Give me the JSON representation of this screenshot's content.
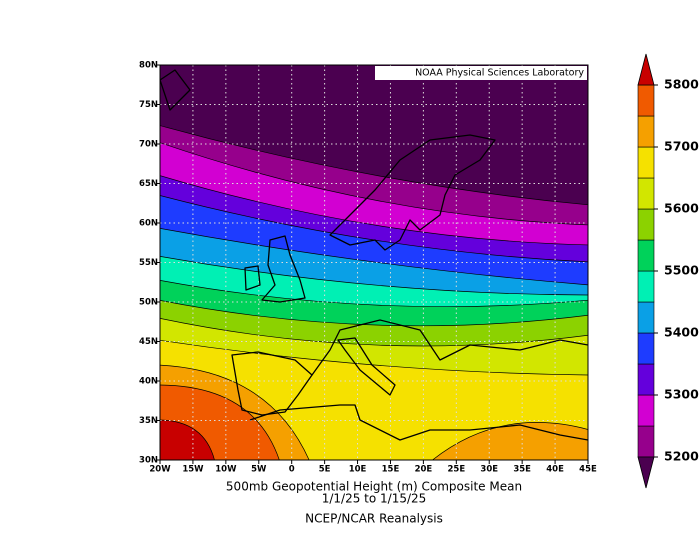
{
  "map": {
    "title": "500mb Geopotential Height (m) Composite Mean",
    "date_range": "1/1/25  to 1/15/25",
    "source": "NCEP/NCAR Reanalysis",
    "credit": "NOAA Physical Sciences Laboratory",
    "lonlim": [
      -20,
      45
    ],
    "latlim": [
      30,
      80
    ],
    "lon_ticks": [
      {
        "value": -20,
        "label": "20W"
      },
      {
        "value": -15,
        "label": "15W"
      },
      {
        "value": -10,
        "label": "10W"
      },
      {
        "value": -5,
        "label": "5W"
      },
      0,
      {
        "value": 5,
        "label": "5E"
      },
      {
        "value": 10,
        "label": "10E"
      },
      {
        "value": 15,
        "label": "15E"
      },
      {
        "value": 20,
        "label": "20E"
      },
      {
        "value": 25,
        "label": "25E"
      },
      {
        "value": 30,
        "label": "30E"
      },
      {
        "value": 35,
        "label": "35E"
      },
      {
        "value": 40,
        "label": "40E"
      },
      {
        "value": 45,
        "label": "45E"
      }
    ],
    "lat_ticks": [
      {
        "value": 30,
        "label": "30N"
      },
      {
        "value": 35,
        "label": "35N"
      },
      {
        "value": 40,
        "label": "40N"
      },
      {
        "value": 45,
        "label": "45N"
      },
      {
        "value": 50,
        "label": "50N"
      },
      {
        "value": 55,
        "label": "55N"
      },
      {
        "value": 60,
        "label": "60N"
      },
      {
        "value": 65,
        "label": "65N"
      },
      {
        "value": 70,
        "label": "70N"
      },
      {
        "value": 75,
        "label": "75N"
      },
      {
        "value": 80,
        "label": "80N"
      }
    ],
    "colorbar": {
      "lim": [
        5200,
        5800
      ],
      "ticks": [
        5200,
        5300,
        5400,
        5500,
        5600,
        5700,
        5800
      ],
      "colors": [
        "#4b0050",
        "#96008c",
        "#d200d2",
        "#6400dc",
        "#1e3cff",
        "#0aa0e6",
        "#00f0b4",
        "#00d25a",
        "#8cd200",
        "#d2e600",
        "#f5e100",
        "#f5a000",
        "#f05a00",
        "#c80000"
      ]
    }
  }
}
